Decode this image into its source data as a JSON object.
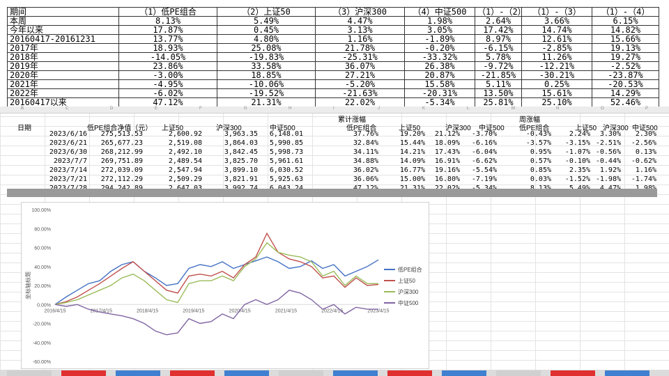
{
  "summary": {
    "header": [
      "期间",
      "（1）低PE组合",
      "（2）上证50",
      "（3）沪深300",
      "（4）中证500",
      "（1）-（2）",
      "（1）-（3）",
      "（1）-（4）"
    ],
    "rows": [
      [
        "本周",
        "8.13%",
        "5.49%",
        "4.47%",
        "1.98%",
        "2.64%",
        "3.66%",
        "6.15%"
      ],
      [
        "今年以来",
        "17.87%",
        "0.45%",
        "3.13%",
        "3.05%",
        "17.42%",
        "14.74%",
        "14.82%"
      ],
      [
        "20160417-20161231",
        "13.77%",
        "4.80%",
        "1.16%",
        "-1.89%",
        "8.97%",
        "12.61%",
        "15.66%"
      ],
      [
        "2017年",
        "18.93%",
        "25.08%",
        "21.78%",
        "-0.20%",
        "-6.15%",
        "-2.85%",
        "19.13%"
      ],
      [
        "2018年",
        "-14.05%",
        "-19.83%",
        "-25.31%",
        "-33.32%",
        "5.78%",
        "11.26%",
        "19.27%"
      ],
      [
        "2019年",
        "23.86%",
        "33.58%",
        "36.07%",
        "26.38%",
        "-9.72%",
        "-12.21%",
        "-2.52%"
      ],
      [
        "2020年",
        "-3.00%",
        "18.85%",
        "27.21%",
        "20.87%",
        "-21.85%",
        "-30.21%",
        "-23.87%"
      ],
      [
        "2021年",
        "-4.95%",
        "-10.06%",
        "-5.20%",
        "15.58%",
        "5.11%",
        "0.25%",
        "-20.53%"
      ],
      [
        "2022年",
        "-6.02%",
        "-19.52%",
        "-21.63%",
        "-20.31%",
        "13.50%",
        "15.61%",
        "14.29%"
      ],
      [
        "20160417以来",
        "47.12%",
        "21.31%",
        "22.02%",
        "-5.34%",
        "25.81%",
        "25.10%",
        "52.46%"
      ]
    ]
  },
  "sheet": {
    "section_cum": "累计涨幅",
    "section_week": "周涨幅",
    "header": [
      "日期",
      "低PE组合净值（元）",
      "上证50",
      "沪深300",
      "中证500",
      "低PE组合",
      "上证50",
      "沪深300",
      "中证500",
      "低PE组合",
      "上证50",
      "沪深300",
      "中证500"
    ],
    "rows": [
      [
        "2023/6/16",
        "275,513.53",
        "2,600.92",
        "3,963.35",
        "6,148.01",
        "37.76%",
        "19.20%",
        "21.12%",
        "-3.70%",
        "-0.43%",
        "2.24%",
        "3.30%",
        "2.30%"
      ],
      [
        "2023/6/21",
        "265,677.23",
        "2,519.08",
        "3,864.03",
        "5,990.85",
        "32.84%",
        "15.44%",
        "18.09%",
        "-6.16%",
        "-3.57%",
        "-3.15%",
        "-2.51%",
        "-2.56%"
      ],
      [
        "2023/6/30",
        "268,212.99",
        "2,492.10",
        "3,842.45",
        "5,998.73",
        "34.11%",
        "14.21%",
        "17.43%",
        "-6.04%",
        "0.95%",
        "-1.07%",
        "-0.56%",
        "0.13%"
      ],
      [
        "2023/7/7",
        "269,751.89",
        "2,489.54",
        "3,825.70",
        "5,961.61",
        "34.88%",
        "14.09%",
        "16.91%",
        "-6.62%",
        "0.57%",
        "-0.10%",
        "-0.44%",
        "-0.62%"
      ],
      [
        "2023/7/14",
        "272,039.09",
        "2,547.94",
        "3,899.10",
        "6,030.52",
        "36.02%",
        "16.77%",
        "19.16%",
        "-5.54%",
        "0.85%",
        "2.35%",
        "1.92%",
        "1.16%"
      ],
      [
        "2023/7/21",
        "272,112.29",
        "2,509.29",
        "3,821.91",
        "5,925.63",
        "36.06%",
        "15.00%",
        "16.80%",
        "-7.19%",
        "0.03%",
        "-1.52%",
        "-1.98%",
        "-1.74%"
      ],
      [
        "2023/7/28",
        "294,242.89",
        "2,647.03",
        "3,992.74",
        "6,043.24",
        "47.12%",
        "21.31%",
        "22.02%",
        "-5.34%",
        "8.13%",
        "5.49%",
        "4.47%",
        "1.98%"
      ]
    ]
  },
  "chart_data": {
    "type": "line",
    "title": "",
    "xlabel": "",
    "ylabel": "坐标轴标题",
    "ylim": [
      -60,
      100
    ],
    "yticks": [
      "100.00%",
      "80.00%",
      "60.00%",
      "40.00%",
      "20.00%",
      "0.00%",
      "-20.00%",
      "-40.00%",
      "-60.00%"
    ],
    "xticks": [
      "2016/4/15",
      "2017/4/15",
      "2018/4/15",
      "2019/4/15",
      "2020/4/15",
      "2021/4/15",
      "2022/4/15",
      "2023/4/15"
    ],
    "x": [
      "2016-04",
      "2016-07",
      "2016-10",
      "2017-01",
      "2017-04",
      "2017-07",
      "2017-10",
      "2018-01",
      "2018-04",
      "2018-07",
      "2018-10",
      "2019-01",
      "2019-04",
      "2019-07",
      "2019-10",
      "2020-01",
      "2020-04",
      "2020-07",
      "2020-10",
      "2021-01",
      "2021-04",
      "2021-07",
      "2021-10",
      "2022-01",
      "2022-04",
      "2022-07",
      "2022-10",
      "2023-01",
      "2023-04",
      "2023-07"
    ],
    "series": [
      {
        "name": "低PE组合",
        "color": "#4472c4",
        "values": [
          0,
          8,
          15,
          22,
          25,
          35,
          42,
          45,
          35,
          28,
          20,
          22,
          38,
          42,
          40,
          45,
          38,
          42,
          46,
          50,
          45,
          38,
          40,
          46,
          38,
          42,
          30,
          35,
          40,
          47
        ]
      },
      {
        "name": "上证50",
        "color": "#c0504d",
        "values": [
          0,
          3,
          8,
          15,
          22,
          30,
          38,
          45,
          35,
          25,
          15,
          12,
          30,
          32,
          30,
          35,
          28,
          42,
          50,
          75,
          55,
          48,
          45,
          40,
          28,
          30,
          18,
          28,
          20,
          21
        ]
      },
      {
        "name": "沪深300",
        "color": "#9bbb59",
        "values": [
          0,
          2,
          5,
          10,
          15,
          20,
          28,
          32,
          25,
          15,
          5,
          2,
          22,
          25,
          25,
          30,
          25,
          40,
          48,
          65,
          55,
          52,
          50,
          45,
          30,
          35,
          20,
          30,
          22,
          22
        ]
      },
      {
        "name": "中证500",
        "color": "#8064a2",
        "values": [
          0,
          -2,
          0,
          -5,
          -8,
          -10,
          -12,
          -15,
          -20,
          -28,
          -32,
          -30,
          -15,
          -20,
          -18,
          -10,
          -15,
          0,
          5,
          0,
          5,
          15,
          12,
          5,
          -5,
          0,
          -10,
          -3,
          -5,
          -5
        ]
      }
    ]
  }
}
